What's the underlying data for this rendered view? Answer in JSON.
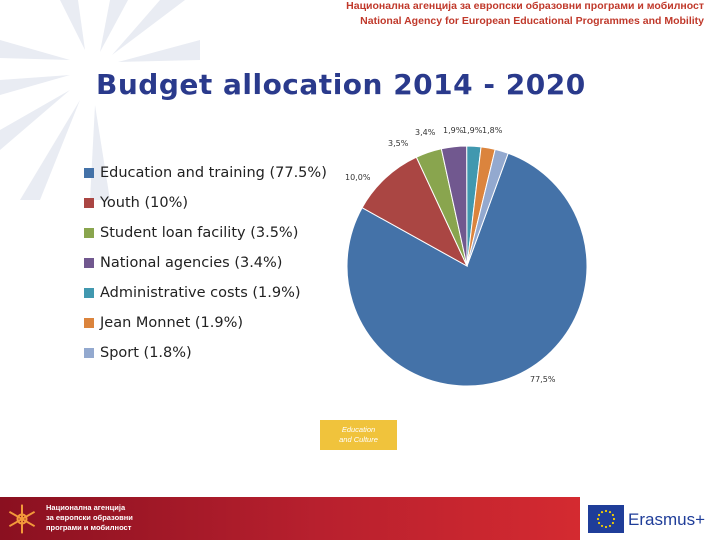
{
  "header": {
    "line1": "Национална агенција за европски образовни програми и мобилност",
    "line2": "National Agency for European Educational Programmes and Mobility"
  },
  "title": "Budget allocation 2014 - 2020",
  "chart_data": {
    "type": "pie",
    "slices": [
      {
        "name": "Education and training (77.5%)",
        "value": 77.5,
        "label": "77,5%",
        "color": "#4472a8"
      },
      {
        "name": "Youth (10%)",
        "value": 10.0,
        "label": "10,0%",
        "color": "#aa4643"
      },
      {
        "name": "Student loan facility (3.5%)",
        "value": 3.5,
        "label": "3,5%",
        "color": "#89a54e"
      },
      {
        "name": "National agencies (3.4%)",
        "value": 3.4,
        "label": "3,4%",
        "color": "#71588f"
      },
      {
        "name": "Administrative costs (1.9%)",
        "value": 1.9,
        "label": "1,9%",
        "color": "#4198af"
      },
      {
        "name": "Jean Monnet (1.9%)",
        "value": 1.9,
        "label": "1,9%",
        "color": "#db843d"
      },
      {
        "name": "Sport (1.8%)",
        "value": 1.8,
        "label": "1,8%",
        "color": "#93a9cf"
      }
    ],
    "legend_position": "left"
  },
  "badge": {
    "line1": "Education",
    "line2": "and Culture"
  },
  "footer": {
    "line1": "Национална агенција",
    "line2": "за европски образовни",
    "line3": "програми и мобилност"
  },
  "erasmus": {
    "label": "Erasmus+",
    "flag_color": "#1f3d99",
    "star_color": "#f5d000"
  }
}
